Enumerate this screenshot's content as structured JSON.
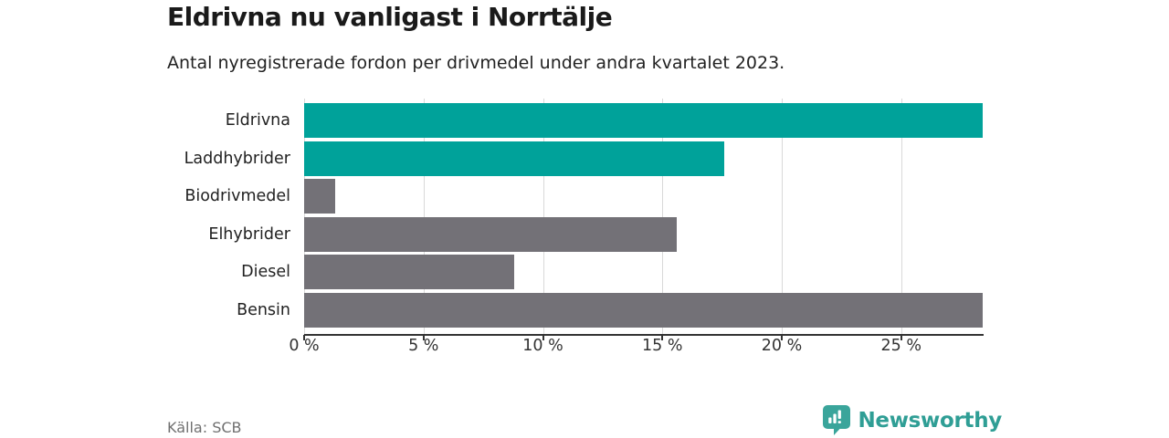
{
  "header": {
    "title": "Eldrivna nu vanligast i Norrtälje",
    "subtitle": "Antal nyregistrerade fordon per drivmedel under andra kvartalet 2023."
  },
  "footer": {
    "source": "Källa: SCB",
    "brand_name": "Newsworthy"
  },
  "colors": {
    "electric_bar": "#00a29a",
    "other_bar": "#737177",
    "axis": "#333333",
    "gridline": "#d9d9d9",
    "brand_teal": "#3aa59b",
    "brand_text": "#2f9e95"
  },
  "chart_data": {
    "type": "bar",
    "orientation": "horizontal",
    "title": "Eldrivna nu vanligast i Norrtälje",
    "subtitle": "Antal nyregistrerade fordon per drivmedel under andra kvartalet 2023.",
    "categories": [
      "Eldrivna",
      "Laddhybrider",
      "Biodrivmedel",
      "Elhybrider",
      "Diesel",
      "Bensin"
    ],
    "values": [
      28.4,
      17.6,
      1.3,
      15.6,
      8.8,
      28.4
    ],
    "unit": "%",
    "bar_color_keys": [
      "electric_bar",
      "electric_bar",
      "other_bar",
      "other_bar",
      "other_bar",
      "other_bar"
    ],
    "xlim": [
      0,
      28.45
    ],
    "tick_values": [
      0,
      5,
      10,
      15,
      20,
      25
    ],
    "tick_labels": [
      "0 %",
      "5 %",
      "10 %",
      "15 %",
      "20 %",
      "25 %"
    ],
    "grid": true,
    "legend": false
  }
}
